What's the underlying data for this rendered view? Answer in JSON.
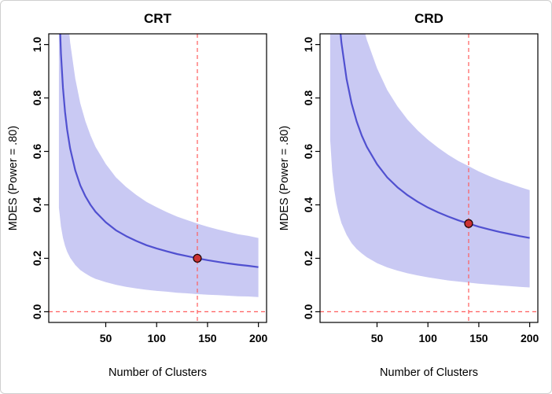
{
  "figure": {
    "background": "#ffffff",
    "border_color": "#cfcfcf"
  },
  "colors": {
    "curve": "#5050d0",
    "band": "#c9c9f3",
    "ref_line": "#ff5c5c",
    "marker_fill": "#cc3333",
    "marker_stroke": "#1a0000",
    "box": "#000000",
    "text": "#000000"
  },
  "chart_data": [
    {
      "type": "line",
      "title": "CRT",
      "xlabel": "Number of Clusters",
      "ylabel": "MDES (Power = .80)",
      "xlim": [
        -6,
        208
      ],
      "ylim": [
        -0.04,
        1.04
      ],
      "x_ticks": [
        50,
        100,
        150,
        200
      ],
      "y_ticks": [
        0.0,
        0.2,
        0.4,
        0.6,
        0.8,
        1.0
      ],
      "grid": false,
      "legend": "none",
      "x": [
        4,
        6,
        8,
        10,
        12,
        15,
        20,
        25,
        30,
        35,
        40,
        50,
        60,
        70,
        80,
        90,
        100,
        110,
        120,
        130,
        140,
        150,
        160,
        170,
        180,
        190,
        200
      ],
      "mdes": [
        1.183,
        0.966,
        0.837,
        0.748,
        0.683,
        0.611,
        0.529,
        0.473,
        0.432,
        0.4,
        0.374,
        0.335,
        0.305,
        0.283,
        0.265,
        0.249,
        0.237,
        0.226,
        0.216,
        0.208,
        0.2,
        0.193,
        0.187,
        0.181,
        0.176,
        0.172,
        0.167
      ],
      "band_upper": [
        1.952,
        1.594,
        1.381,
        1.234,
        1.127,
        1.008,
        0.873,
        0.78,
        0.713,
        0.66,
        0.617,
        0.553,
        0.503,
        0.467,
        0.437,
        0.411,
        0.391,
        0.373,
        0.356,
        0.343,
        0.33,
        0.318,
        0.308,
        0.299,
        0.29,
        0.284,
        0.276
      ],
      "band_lower": [
        0.39,
        0.319,
        0.276,
        0.247,
        0.225,
        0.202,
        0.175,
        0.156,
        0.143,
        0.132,
        0.123,
        0.111,
        0.101,
        0.093,
        0.087,
        0.082,
        0.078,
        0.075,
        0.071,
        0.069,
        0.066,
        0.064,
        0.062,
        0.06,
        0.058,
        0.057,
        0.055
      ],
      "marker": {
        "x": 140,
        "y": 0.2
      },
      "vline_x": 140,
      "hline_y": 0
    },
    {
      "type": "line",
      "title": "CRD",
      "xlabel": "Number of Clusters",
      "ylabel": "MDES (Power = .80)",
      "xlim": [
        -6,
        208
      ],
      "ylim": [
        -0.04,
        1.04
      ],
      "x_ticks": [
        50,
        100,
        150,
        200
      ],
      "y_ticks": [
        0.0,
        0.2,
        0.4,
        0.6,
        0.8,
        1.0
      ],
      "grid": false,
      "legend": "none",
      "x": [
        4,
        6,
        8,
        10,
        12,
        15,
        20,
        25,
        30,
        35,
        40,
        50,
        60,
        70,
        80,
        90,
        100,
        110,
        120,
        130,
        140,
        150,
        160,
        170,
        180,
        190,
        200
      ],
      "mdes": [
        1.95,
        1.592,
        1.379,
        1.233,
        1.126,
        1.007,
        0.872,
        0.78,
        0.712,
        0.659,
        0.617,
        0.552,
        0.503,
        0.466,
        0.436,
        0.411,
        0.39,
        0.372,
        0.356,
        0.342,
        0.33,
        0.318,
        0.308,
        0.299,
        0.291,
        0.283,
        0.276
      ],
      "band_upper": [
        3.218,
        2.627,
        2.275,
        2.034,
        1.858,
        1.661,
        1.439,
        1.287,
        1.175,
        1.088,
        1.018,
        0.911,
        0.83,
        0.769,
        0.719,
        0.678,
        0.644,
        0.614,
        0.587,
        0.564,
        0.545,
        0.525,
        0.508,
        0.493,
        0.48,
        0.467,
        0.455
      ],
      "band_lower": [
        0.644,
        0.525,
        0.455,
        0.407,
        0.372,
        0.332,
        0.288,
        0.257,
        0.235,
        0.218,
        0.204,
        0.182,
        0.166,
        0.154,
        0.144,
        0.136,
        0.129,
        0.123,
        0.117,
        0.113,
        0.109,
        0.105,
        0.102,
        0.099,
        0.096,
        0.093,
        0.091
      ],
      "marker": {
        "x": 140,
        "y": 0.33
      },
      "vline_x": 140,
      "hline_y": 0
    }
  ]
}
